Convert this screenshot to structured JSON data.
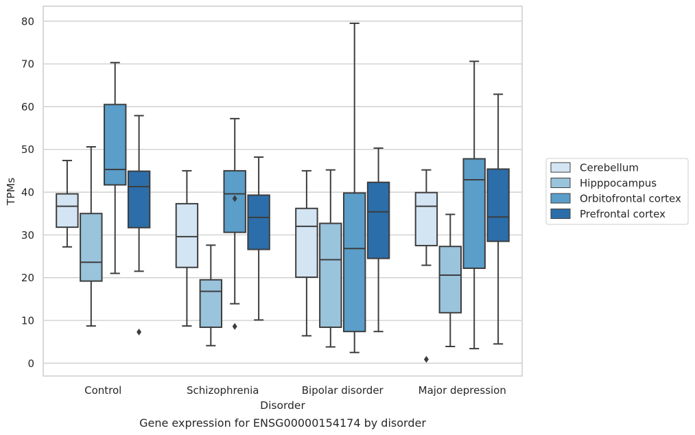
{
  "chart_data": {
    "type": "box",
    "xlabel": "Disorder",
    "ylabel": "TPMs",
    "caption": "Gene expression for ENSG00000154174 by disorder",
    "ylim": [
      -3,
      83.5
    ],
    "yticks": [
      0,
      10,
      20,
      30,
      40,
      50,
      60,
      70,
      80
    ],
    "grid": true,
    "legend_position": "right",
    "categories": [
      "Control",
      "Schizophrenia",
      "Bipolar disorder",
      "Major depression"
    ],
    "series": [
      {
        "name": "Cerebellum",
        "color": "#d3e4f3",
        "boxes": [
          {
            "whislo": 27.2,
            "q1": 31.8,
            "med": 36.7,
            "q3": 39.6,
            "whishi": 47.4,
            "fliers": []
          },
          {
            "whislo": 8.7,
            "q1": 22.4,
            "med": 29.6,
            "q3": 37.3,
            "whishi": 45.0,
            "fliers": []
          },
          {
            "whislo": 6.4,
            "q1": 20.1,
            "med": 32.0,
            "q3": 36.2,
            "whishi": 45.0,
            "fliers": []
          },
          {
            "whislo": 22.9,
            "q1": 27.5,
            "med": 36.7,
            "q3": 39.9,
            "whishi": 45.2,
            "fliers": [
              0.9
            ]
          }
        ]
      },
      {
        "name": "Hipppocampus",
        "color": "#9ac3dc",
        "boxes": [
          {
            "whislo": 8.7,
            "q1": 19.2,
            "med": 23.6,
            "q3": 35.0,
            "whishi": 50.6,
            "fliers": []
          },
          {
            "whislo": 4.1,
            "q1": 8.4,
            "med": 16.8,
            "q3": 19.5,
            "whishi": 27.6,
            "fliers": []
          },
          {
            "whislo": 3.8,
            "q1": 8.4,
            "med": 24.2,
            "q3": 32.7,
            "whishi": 45.2,
            "fliers": []
          },
          {
            "whislo": 3.9,
            "q1": 11.8,
            "med": 20.6,
            "q3": 27.3,
            "whishi": 34.8,
            "fliers": []
          }
        ]
      },
      {
        "name": "Orbitofrontal cortex",
        "color": "#5a9ec9",
        "boxes": [
          {
            "whislo": 21.0,
            "q1": 41.7,
            "med": 45.3,
            "q3": 60.5,
            "whishi": 70.3,
            "fliers": []
          },
          {
            "whislo": 13.9,
            "q1": 30.6,
            "med": 39.6,
            "q3": 45.0,
            "whishi": 57.2,
            "fliers": [
              38.5,
              8.6
            ]
          },
          {
            "whislo": 2.5,
            "q1": 7.4,
            "med": 26.8,
            "q3": 39.8,
            "whishi": 79.5,
            "fliers": []
          },
          {
            "whislo": 3.4,
            "q1": 22.2,
            "med": 42.9,
            "q3": 47.8,
            "whishi": 70.6,
            "fliers": []
          }
        ]
      },
      {
        "name": "Prefrontal cortex",
        "color": "#2b6eaa",
        "boxes": [
          {
            "whislo": 21.5,
            "q1": 31.7,
            "med": 41.3,
            "q3": 44.9,
            "whishi": 57.9,
            "fliers": [
              7.3
            ]
          },
          {
            "whislo": 10.1,
            "q1": 26.6,
            "med": 34.1,
            "q3": 39.3,
            "whishi": 48.2,
            "fliers": []
          },
          {
            "whislo": 7.4,
            "q1": 24.5,
            "med": 35.4,
            "q3": 42.3,
            "whishi": 50.3,
            "fliers": []
          },
          {
            "whislo": 4.5,
            "q1": 28.5,
            "med": 34.2,
            "q3": 45.4,
            "whishi": 62.9,
            "fliers": []
          }
        ]
      }
    ]
  }
}
